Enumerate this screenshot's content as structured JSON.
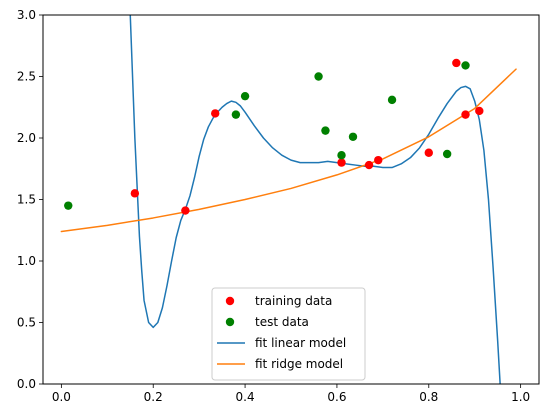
{
  "chart_data": {
    "type": "scatter",
    "title": "",
    "xlabel": "",
    "ylabel": "",
    "xlim": [
      -0.04,
      1.04
    ],
    "ylim": [
      0,
      3.0
    ],
    "grid": false,
    "legend_placement": "bottom-center",
    "x_ticks": [
      0.0,
      0.2,
      0.4,
      0.6,
      0.8,
      1.0
    ],
    "x_tick_labels": [
      "0.0",
      "0.2",
      "0.4",
      "0.6",
      "0.8",
      "1.0"
    ],
    "y_ticks": [
      0.0,
      0.5,
      1.0,
      1.5,
      2.0,
      2.5,
      3.0
    ],
    "y_tick_labels": [
      "0.0",
      "0.5",
      "1.0",
      "1.5",
      "2.0",
      "2.5",
      "3.0"
    ],
    "series": [
      {
        "name": "training data",
        "kind": "scatter",
        "color": "#ff0000",
        "points": [
          [
            0.16,
            1.55
          ],
          [
            0.27,
            1.41
          ],
          [
            0.335,
            2.2
          ],
          [
            0.61,
            1.8
          ],
          [
            0.67,
            1.78
          ],
          [
            0.69,
            1.82
          ],
          [
            0.8,
            1.88
          ],
          [
            0.86,
            2.61
          ],
          [
            0.88,
            2.19
          ],
          [
            0.91,
            2.22
          ]
        ]
      },
      {
        "name": "test data",
        "kind": "scatter",
        "color": "#008000",
        "points": [
          [
            0.015,
            1.45
          ],
          [
            0.38,
            2.19
          ],
          [
            0.4,
            2.34
          ],
          [
            0.56,
            2.5
          ],
          [
            0.575,
            2.06
          ],
          [
            0.61,
            1.86
          ],
          [
            0.635,
            2.01
          ],
          [
            0.72,
            2.31
          ],
          [
            0.84,
            1.87
          ],
          [
            0.88,
            2.59
          ]
        ]
      },
      {
        "name": "fit linear model",
        "kind": "line",
        "color": "#1f77b4",
        "points": [
          [
            0.14,
            3.3
          ],
          [
            0.15,
            3.0
          ],
          [
            0.16,
            2.0
          ],
          [
            0.17,
            1.2
          ],
          [
            0.175,
            0.92
          ],
          [
            0.18,
            0.68
          ],
          [
            0.19,
            0.5
          ],
          [
            0.2,
            0.46
          ],
          [
            0.21,
            0.5
          ],
          [
            0.22,
            0.62
          ],
          [
            0.23,
            0.8
          ],
          [
            0.24,
            1.0
          ],
          [
            0.25,
            1.19
          ],
          [
            0.26,
            1.33
          ],
          [
            0.27,
            1.42
          ],
          [
            0.28,
            1.53
          ],
          [
            0.29,
            1.68
          ],
          [
            0.3,
            1.85
          ],
          [
            0.31,
            1.99
          ],
          [
            0.32,
            2.09
          ],
          [
            0.33,
            2.16
          ],
          [
            0.34,
            2.21
          ],
          [
            0.35,
            2.25
          ],
          [
            0.36,
            2.28
          ],
          [
            0.37,
            2.3
          ],
          [
            0.38,
            2.29
          ],
          [
            0.39,
            2.26
          ],
          [
            0.4,
            2.21
          ],
          [
            0.42,
            2.1
          ],
          [
            0.44,
            2.0
          ],
          [
            0.46,
            1.92
          ],
          [
            0.48,
            1.86
          ],
          [
            0.5,
            1.82
          ],
          [
            0.52,
            1.8
          ],
          [
            0.54,
            1.8
          ],
          [
            0.56,
            1.8
          ],
          [
            0.58,
            1.81
          ],
          [
            0.6,
            1.8
          ],
          [
            0.62,
            1.79
          ],
          [
            0.64,
            1.78
          ],
          [
            0.66,
            1.77
          ],
          [
            0.68,
            1.77
          ],
          [
            0.7,
            1.76
          ],
          [
            0.72,
            1.76
          ],
          [
            0.74,
            1.79
          ],
          [
            0.76,
            1.84
          ],
          [
            0.78,
            1.92
          ],
          [
            0.8,
            2.03
          ],
          [
            0.82,
            2.16
          ],
          [
            0.84,
            2.28
          ],
          [
            0.86,
            2.38
          ],
          [
            0.87,
            2.41
          ],
          [
            0.88,
            2.42
          ],
          [
            0.89,
            2.4
          ],
          [
            0.9,
            2.3
          ],
          [
            0.91,
            2.15
          ],
          [
            0.92,
            1.9
          ],
          [
            0.93,
            1.5
          ],
          [
            0.94,
            0.95
          ],
          [
            0.95,
            0.35
          ],
          [
            0.96,
            -0.3
          ]
        ]
      },
      {
        "name": "fit ridge model",
        "kind": "line",
        "color": "#ff7f0e",
        "points": [
          [
            0.0,
            1.24
          ],
          [
            0.1,
            1.29
          ],
          [
            0.2,
            1.35
          ],
          [
            0.3,
            1.42
          ],
          [
            0.4,
            1.5
          ],
          [
            0.5,
            1.59
          ],
          [
            0.6,
            1.7
          ],
          [
            0.7,
            1.83
          ],
          [
            0.8,
            2.01
          ],
          [
            0.9,
            2.24
          ],
          [
            0.99,
            2.56
          ]
        ]
      }
    ]
  }
}
